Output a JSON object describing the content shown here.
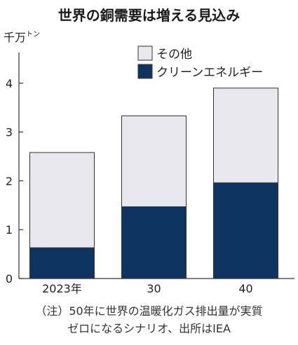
{
  "title": "世界の銅需要は増える見込み",
  "unit": {
    "main": "千万",
    "small": "トン"
  },
  "colors": {
    "clean_energy": "#0e3561",
    "other": "#e8e8ee",
    "stroke": "#333333",
    "axis": "#333333"
  },
  "chart_data": {
    "type": "bar",
    "stacked": true,
    "categories": [
      "2023年",
      "30",
      "40"
    ],
    "series": [
      {
        "name": "クリーンエネルギー",
        "values": [
          0.63,
          1.47,
          1.96
        ]
      },
      {
        "name": "その他",
        "values": [
          1.95,
          1.86,
          1.94
        ]
      }
    ],
    "ylim": [
      0,
      4.6
    ],
    "yticks": [
      0,
      1,
      2,
      3,
      4
    ],
    "legend": "top-right"
  },
  "notes": [
    "（注）50年に世界の温暖化ガス排出量が実質",
    "ゼロになるシナリオ、出所はIEA"
  ]
}
